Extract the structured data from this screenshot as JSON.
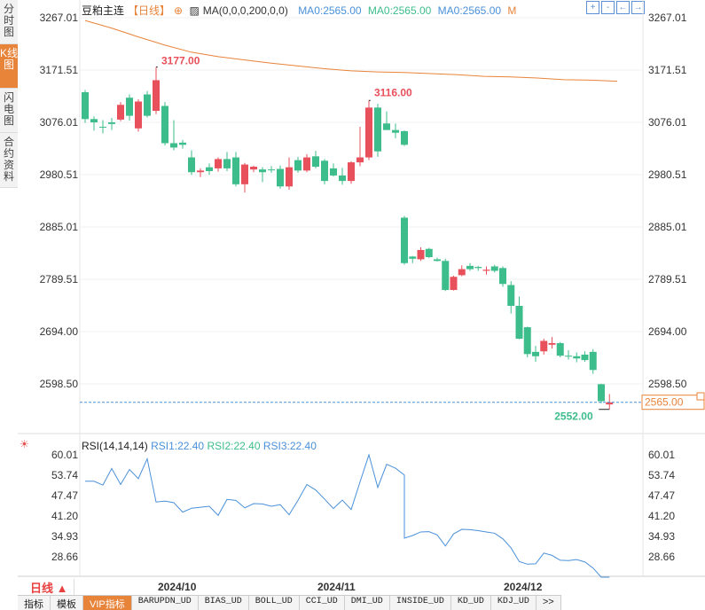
{
  "side_tabs": [
    "分时图",
    "K线图",
    "闪电图",
    "合约资料"
  ],
  "header": {
    "name": "豆粕主连",
    "period": "【日线】",
    "ma_label": "MA(0,0,0,200,0,0)",
    "ma1": "MA0:2565.00",
    "ma2": "MA0:2565.00",
    "ma3": "MA0:2565.00",
    "m": "M"
  },
  "tools": [
    "+",
    "-",
    "←",
    "→"
  ],
  "price_axis": [
    "3267.01",
    "3171.51",
    "3076.01",
    "2980.51",
    "2885.01",
    "2789.51",
    "2694.00",
    "2598.50"
  ],
  "rsi_axis": [
    "60.01",
    "53.74",
    "47.47",
    "41.20",
    "34.93",
    "28.66"
  ],
  "last_price_tag": "2565.00",
  "annotations": {
    "high1": "3177.00",
    "high2": "3116.00",
    "low": "2552.00"
  },
  "rsi_header": {
    "name": "RSI(14,14,14)",
    "rsi1": "RSI1:22.40",
    "rsi2": "RSI2:22.40",
    "rsi3": "RSI3:22.40"
  },
  "x_axis": [
    "2024/10",
    "2024/11",
    "2024/12"
  ],
  "bottom": {
    "period_button": "日线 ▲",
    "tabs": [
      "指标",
      "模板",
      "VIP指标",
      "BARUPDN_UD",
      "BIAS_UD",
      "BOLL_UD",
      "CCI_UD",
      "DMI_UD",
      "INSIDE_UD",
      "KD_UD",
      "KDJ_UD",
      ">>"
    ]
  },
  "colors": {
    "up": "#e8505b",
    "down": "#3dbd8b",
    "ma": "#e8833a",
    "rsi": "#4a90d9"
  },
  "chart_data": {
    "type": "candlestick",
    "price_range": [
      2552,
      3267.01
    ],
    "candles": [
      {
        "o": 3131,
        "h": 3135,
        "l": 3075,
        "c": 3082
      },
      {
        "o": 3082,
        "h": 3087,
        "l": 3061,
        "c": 3076
      },
      {
        "o": 3068,
        "h": 3080,
        "l": 3056,
        "c": 3067
      },
      {
        "o": 3076,
        "h": 3084,
        "l": 3062,
        "c": 3073
      },
      {
        "o": 3081,
        "h": 3113,
        "l": 3078,
        "c": 3108
      },
      {
        "o": 3121,
        "h": 3127,
        "l": 3079,
        "c": 3088
      },
      {
        "o": 3065,
        "h": 3118,
        "l": 3059,
        "c": 3114
      },
      {
        "o": 3127,
        "h": 3133,
        "l": 3085,
        "c": 3088
      },
      {
        "o": 3097,
        "h": 3177,
        "l": 3091,
        "c": 3153
      },
      {
        "o": 3106,
        "h": 3113,
        "l": 3034,
        "c": 3038
      },
      {
        "o": 3038,
        "h": 3080,
        "l": 3025,
        "c": 3030
      },
      {
        "o": 3039,
        "h": 3044,
        "l": 3028,
        "c": 3035
      },
      {
        "o": 3012,
        "h": 3025,
        "l": 2980,
        "c": 2985
      },
      {
        "o": 2985,
        "h": 2992,
        "l": 2976,
        "c": 2988
      },
      {
        "o": 2994,
        "h": 3001,
        "l": 2980,
        "c": 2987
      },
      {
        "o": 2992,
        "h": 3012,
        "l": 2986,
        "c": 3009
      },
      {
        "o": 3009,
        "h": 3022,
        "l": 2987,
        "c": 2992
      },
      {
        "o": 3012,
        "h": 3022,
        "l": 2959,
        "c": 2963
      },
      {
        "o": 2963,
        "h": 3002,
        "l": 2948,
        "c": 2999
      },
      {
        "o": 2990,
        "h": 2997,
        "l": 2985,
        "c": 2995
      },
      {
        "o": 2990,
        "h": 2994,
        "l": 2967,
        "c": 2985
      },
      {
        "o": 2990,
        "h": 2996,
        "l": 2984,
        "c": 2989
      },
      {
        "o": 2991,
        "h": 2997,
        "l": 2955,
        "c": 2959
      },
      {
        "o": 2959,
        "h": 3012,
        "l": 2953,
        "c": 2994
      },
      {
        "o": 3007,
        "h": 3013,
        "l": 2984,
        "c": 2988
      },
      {
        "o": 2988,
        "h": 3018,
        "l": 2985,
        "c": 3012
      },
      {
        "o": 3014,
        "h": 3024,
        "l": 2992,
        "c": 2995
      },
      {
        "o": 3006,
        "h": 3009,
        "l": 2963,
        "c": 2969
      },
      {
        "o": 2992,
        "h": 3001,
        "l": 2977,
        "c": 2979
      },
      {
        "o": 2979,
        "h": 2993,
        "l": 2962,
        "c": 2969
      },
      {
        "o": 2969,
        "h": 3005,
        "l": 2964,
        "c": 3003
      },
      {
        "o": 3003,
        "h": 3068,
        "l": 2996,
        "c": 3012
      },
      {
        "o": 3012,
        "h": 3116,
        "l": 3007,
        "c": 3103
      },
      {
        "o": 3103,
        "h": 3110,
        "l": 3013,
        "c": 3023
      },
      {
        "o": 3074,
        "h": 3096,
        "l": 3062,
        "c": 3062
      },
      {
        "o": 3062,
        "h": 3074,
        "l": 3047,
        "c": 3057
      },
      {
        "o": 3060,
        "h": 3061,
        "l": 3033,
        "c": 3035
      },
      {
        "o": 2902,
        "h": 2905,
        "l": 2816,
        "c": 2819
      },
      {
        "o": 2831,
        "h": 2832,
        "l": 2819,
        "c": 2827
      },
      {
        "o": 2826,
        "h": 2848,
        "l": 2823,
        "c": 2843
      },
      {
        "o": 2845,
        "h": 2847,
        "l": 2828,
        "c": 2830
      },
      {
        "o": 2826,
        "h": 2829,
        "l": 2822,
        "c": 2823
      },
      {
        "o": 2823,
        "h": 2827,
        "l": 2768,
        "c": 2770
      },
      {
        "o": 2770,
        "h": 2796,
        "l": 2769,
        "c": 2794
      },
      {
        "o": 2797,
        "h": 2815,
        "l": 2795,
        "c": 2808
      },
      {
        "o": 2814,
        "h": 2819,
        "l": 2805,
        "c": 2808
      },
      {
        "o": 2812,
        "h": 2814,
        "l": 2805,
        "c": 2810
      },
      {
        "o": 2805,
        "h": 2813,
        "l": 2798,
        "c": 2807
      },
      {
        "o": 2813,
        "h": 2816,
        "l": 2802,
        "c": 2805
      },
      {
        "o": 2810,
        "h": 2813,
        "l": 2776,
        "c": 2781
      },
      {
        "o": 2779,
        "h": 2786,
        "l": 2727,
        "c": 2741
      },
      {
        "o": 2741,
        "h": 2758,
        "l": 2680,
        "c": 2681
      },
      {
        "o": 2702,
        "h": 2703,
        "l": 2647,
        "c": 2653
      },
      {
        "o": 2657,
        "h": 2668,
        "l": 2639,
        "c": 2649
      },
      {
        "o": 2658,
        "h": 2681,
        "l": 2652,
        "c": 2677
      },
      {
        "o": 2670,
        "h": 2684,
        "l": 2663,
        "c": 2673
      },
      {
        "o": 2673,
        "h": 2675,
        "l": 2647,
        "c": 2650
      },
      {
        "o": 2650,
        "h": 2660,
        "l": 2643,
        "c": 2649
      },
      {
        "o": 2649,
        "h": 2656,
        "l": 2638,
        "c": 2645
      },
      {
        "o": 2652,
        "h": 2658,
        "l": 2639,
        "c": 2642
      },
      {
        "o": 2657,
        "h": 2662,
        "l": 2617,
        "c": 2624
      },
      {
        "o": 2598,
        "h": 2599,
        "l": 2563,
        "c": 2567
      },
      {
        "o": 2561,
        "h": 2580,
        "l": 2552,
        "c": 2565
      }
    ],
    "ma_line": [
      3262,
      3248,
      3232,
      3217,
      3204,
      3196,
      3190,
      3184,
      3179,
      3174,
      3170,
      3168,
      3167,
      3165,
      3163,
      3160,
      3159,
      3157,
      3154,
      3153,
      3151
    ],
    "rsi": [
      51.9,
      51.9,
      50.7,
      55.8,
      50.9,
      55.5,
      52.7,
      58.8,
      45.5,
      45.8,
      45.3,
      42.4,
      43.6,
      43.9,
      44.2,
      41.4,
      46.3,
      46.0,
      43.7,
      45.0,
      44.9,
      44.2,
      44.7,
      41.6,
      46.0,
      50.9,
      49.2,
      46.4,
      43.5,
      46.1,
      43.2,
      51.7,
      60.0,
      50.0,
      57.1,
      55.9,
      53.8,
      34.4,
      35.2,
      36.3,
      36.4,
      35.4,
      32.0,
      35.7,
      37.1,
      37.0,
      36.7,
      36.3,
      35.9,
      34.2,
      31.4,
      27.2,
      26.4,
      26.5,
      29.8,
      29.1,
      27.6,
      27.5,
      27.8,
      27.1,
      25.2,
      22.4,
      22.4
    ]
  }
}
